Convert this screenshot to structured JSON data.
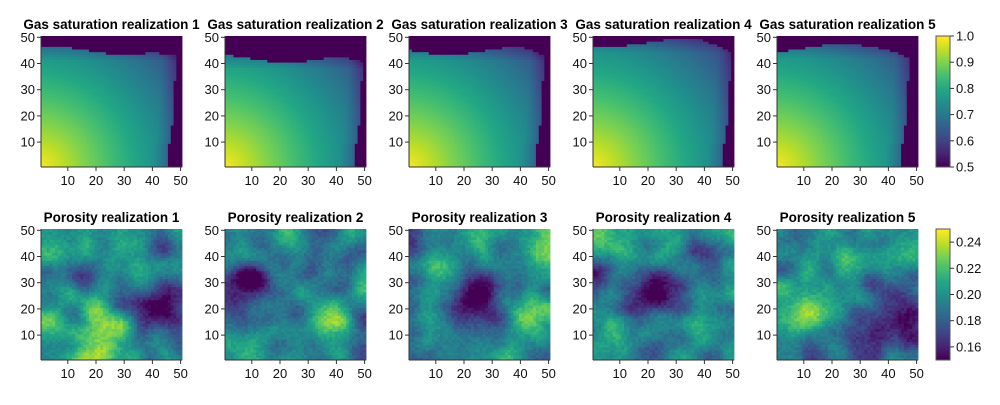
{
  "chart_data": [
    {
      "type": "heatmap",
      "row": "gas_saturation",
      "panels": [
        {
          "title": "Gas saturation realization 1",
          "pattern": "saturation",
          "seed": 1,
          "front_top": 45,
          "front_right": 46
        },
        {
          "title": "Gas saturation realization 2",
          "pattern": "saturation",
          "seed": 2,
          "front_top": 42,
          "front_right": 47
        },
        {
          "title": "Gas saturation realization 3",
          "pattern": "saturation",
          "seed": 3,
          "front_top": 45,
          "front_right": 46
        },
        {
          "title": "Gas saturation realization 4",
          "pattern": "saturation",
          "seed": 4,
          "front_top": 48,
          "front_right": 47
        },
        {
          "title": "Gas saturation realization 5",
          "pattern": "saturation",
          "seed": 5,
          "front_top": 46,
          "front_right": 45
        }
      ],
      "grid_size": [
        50,
        50
      ],
      "x_ticks": [
        10,
        20,
        30,
        40,
        50
      ],
      "y_ticks": [
        10,
        20,
        30,
        40,
        50
      ],
      "xlim": [
        0.5,
        50.5
      ],
      "ylim": [
        0.5,
        50.5
      ],
      "colormap": "viridis",
      "colorbar": {
        "range": [
          0.5,
          1.0
        ],
        "ticks": [
          "0.5",
          "0.6",
          "0.7",
          "0.8",
          "0.9",
          "1.0"
        ],
        "tick_values": [
          0.5,
          0.6,
          0.7,
          0.8,
          0.9,
          1.0
        ]
      }
    },
    {
      "type": "heatmap",
      "row": "porosity",
      "panels": [
        {
          "title": "Porosity realization 1",
          "pattern": "random_field",
          "seed": 11,
          "low_center": [
            45,
            22
          ],
          "high_center": [
            24,
            6
          ]
        },
        {
          "title": "Porosity realization 2",
          "pattern": "random_field",
          "seed": 12,
          "low_center": [
            8,
            30
          ],
          "high_center": [
            38,
            15
          ]
        },
        {
          "title": "Porosity realization 3",
          "pattern": "random_field",
          "seed": 13,
          "low_center": [
            25,
            25
          ],
          "high_center": [
            48,
            20
          ]
        },
        {
          "title": "Porosity realization 4",
          "pattern": "random_field",
          "seed": 14,
          "low_center": [
            22,
            27
          ],
          "high_center": [
            3,
            48
          ]
        },
        {
          "title": "Porosity realization 5",
          "pattern": "random_field",
          "seed": 15,
          "low_center": [
            44,
            18
          ],
          "high_center": [
            12,
            18
          ]
        }
      ],
      "grid_size": [
        50,
        50
      ],
      "x_ticks": [
        10,
        20,
        30,
        40,
        50
      ],
      "y_ticks": [
        10,
        20,
        30,
        40,
        50
      ],
      "xlim": [
        0.5,
        50.5
      ],
      "ylim": [
        0.5,
        50.5
      ],
      "colormap": "viridis",
      "colorbar": {
        "range": [
          0.15,
          0.25
        ],
        "ticks": [
          "0.16",
          "0.18",
          "0.20",
          "0.22",
          "0.24"
        ],
        "tick_values": [
          0.16,
          0.18,
          0.2,
          0.22,
          0.24
        ]
      }
    }
  ]
}
